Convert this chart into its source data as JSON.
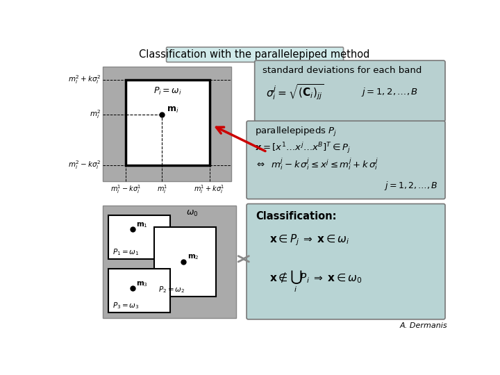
{
  "title": "Classification with the parallelepiped method",
  "bg_color": "#ffffff",
  "panel_bg": "#b8d4d4",
  "std_box_bg": "#b8d0d0",
  "class_box_bg": "#b8d4d4",
  "gray_bg": "#aaaaaa",
  "white": "#ffffff",
  "author": "A. Dermanis",
  "title_box_bg": "#d0eaea",
  "title_box_edge": "#888888"
}
